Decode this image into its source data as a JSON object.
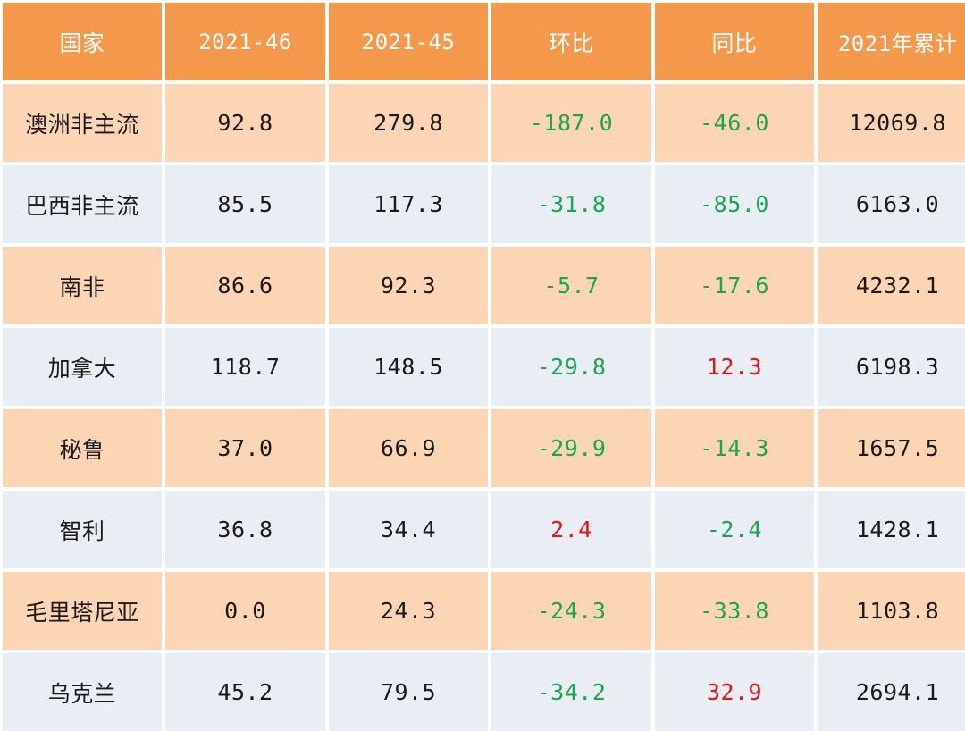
{
  "table": {
    "headers": [
      "国家",
      "2021-46",
      "2021-45",
      "环比",
      "同比",
      "2021年累计"
    ],
    "rows": [
      {
        "country": "澳洲非主流",
        "w46": "92.8",
        "w45": "279.8",
        "hb": "-187.0",
        "tb": "-46.0",
        "ytd": "12069.8"
      },
      {
        "country": "巴西非主流",
        "w46": "85.5",
        "w45": "117.3",
        "hb": "-31.8",
        "tb": "-85.0",
        "ytd": "6163.0"
      },
      {
        "country": "南非",
        "w46": "86.6",
        "w45": "92.3",
        "hb": "-5.7",
        "tb": "-17.6",
        "ytd": "4232.1"
      },
      {
        "country": "加拿大",
        "w46": "118.7",
        "w45": "148.5",
        "hb": "-29.8",
        "tb": "12.3",
        "ytd": "6198.3"
      },
      {
        "country": "秘鲁",
        "w46": "37.0",
        "w45": "66.9",
        "hb": "-29.9",
        "tb": "-14.3",
        "ytd": "1657.5"
      },
      {
        "country": "智利",
        "w46": "36.8",
        "w45": "34.4",
        "hb": "2.4",
        "tb": "-2.4",
        "ytd": "1428.1"
      },
      {
        "country": "毛里塔尼亚",
        "w46": "0.0",
        "w45": "24.3",
        "hb": "-24.3",
        "tb": "-33.8",
        "ytd": "1103.8"
      },
      {
        "country": "乌克兰",
        "w46": "45.2",
        "w45": "79.5",
        "hb": "-34.2",
        "tb": "32.9",
        "ytd": "2694.1"
      }
    ]
  },
  "colors": {
    "header_bg": "#f4994c",
    "row_odd_bg": "#fbd5b4",
    "row_even_bg": "#e9edf4",
    "negative_text": "#1aa650",
    "positive_text": "#ee1111"
  }
}
